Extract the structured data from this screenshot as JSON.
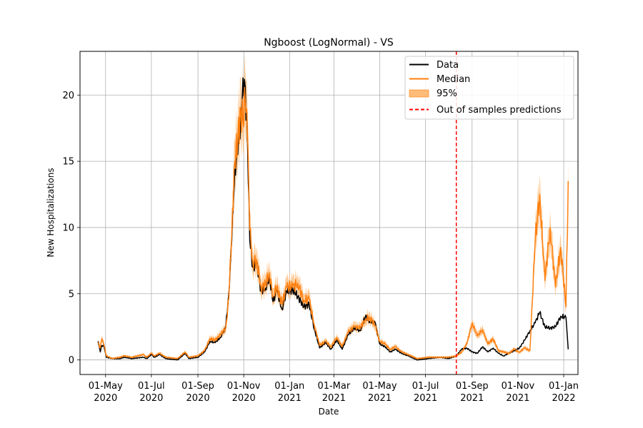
{
  "chart_data": {
    "type": "line",
    "title": "Ngboost (LogNormal) - VS",
    "xlabel": "Date",
    "ylabel": "New Hospitalizations",
    "x_range": [
      "2020-03-28",
      "2022-01-20"
    ],
    "ylim": [
      -1.1,
      23.3
    ],
    "grid": true,
    "legend_position": "upper right",
    "x_ticks": [
      {
        "date": "2020-05-01",
        "line1": "01-May",
        "line2": "2020"
      },
      {
        "date": "2020-07-01",
        "line1": "01-Jul",
        "line2": "2020"
      },
      {
        "date": "2020-09-01",
        "line1": "01-Sep",
        "line2": "2020"
      },
      {
        "date": "2020-11-01",
        "line1": "01-Nov",
        "line2": "2020"
      },
      {
        "date": "2021-01-01",
        "line1": "01-Jan",
        "line2": "2021"
      },
      {
        "date": "2021-03-01",
        "line1": "01-Mar",
        "line2": "2021"
      },
      {
        "date": "2021-05-01",
        "line1": "01-May",
        "line2": "2021"
      },
      {
        "date": "2021-07-01",
        "line1": "01-Jul",
        "line2": "2021"
      },
      {
        "date": "2021-09-01",
        "line1": "01-Sep",
        "line2": "2021"
      },
      {
        "date": "2021-11-01",
        "line1": "01-Nov",
        "line2": "2021"
      },
      {
        "date": "2022-01-01",
        "line1": "01-Jan",
        "line2": "2022"
      }
    ],
    "y_ticks": [
      0,
      5,
      10,
      15,
      20
    ],
    "legend": {
      "data": "Data",
      "median": "Median",
      "band": "95%",
      "split": "Out of samples predictions"
    },
    "colors": {
      "data": "#000000",
      "median": "#ff7f0e",
      "band": "#ffbb78",
      "split": "#ff0000",
      "grid": "#b0b0b0"
    },
    "split_date": "2021-08-11",
    "series": [
      {
        "name": "Data",
        "points": [
          [
            "2020-04-21",
            1.4
          ],
          [
            "2020-04-24",
            0.6
          ],
          [
            "2020-04-26",
            1.1
          ],
          [
            "2020-04-29",
            1.0
          ],
          [
            "2020-05-02",
            0.2
          ],
          [
            "2020-05-10",
            0.1
          ],
          [
            "2020-05-20",
            0.1
          ],
          [
            "2020-05-26",
            0.2
          ],
          [
            "2020-06-05",
            0.1
          ],
          [
            "2020-06-20",
            0.2
          ],
          [
            "2020-06-25",
            0.1
          ],
          [
            "2020-07-01",
            0.4
          ],
          [
            "2020-07-05",
            0.2
          ],
          [
            "2020-07-12",
            0.4
          ],
          [
            "2020-07-20",
            0.1
          ],
          [
            "2020-08-05",
            0.0
          ],
          [
            "2020-08-15",
            0.5
          ],
          [
            "2020-08-20",
            0.1
          ],
          [
            "2020-09-01",
            0.2
          ],
          [
            "2020-09-10",
            0.6
          ],
          [
            "2020-09-17",
            1.4
          ],
          [
            "2020-09-24",
            1.3
          ],
          [
            "2020-10-01",
            1.7
          ],
          [
            "2020-10-08",
            2.5
          ],
          [
            "2020-10-12",
            5.0
          ],
          [
            "2020-10-16",
            9.0
          ],
          [
            "2020-10-20",
            14.4
          ],
          [
            "2020-10-24",
            15.5
          ],
          [
            "2020-10-28",
            18.2
          ],
          [
            "2020-10-31",
            21.3
          ],
          [
            "2020-11-03",
            20.6
          ],
          [
            "2020-11-06",
            16.5
          ],
          [
            "2020-11-09",
            9.0
          ],
          [
            "2020-11-13",
            7.0
          ],
          [
            "2020-11-18",
            7.3
          ],
          [
            "2020-11-24",
            5.2
          ],
          [
            "2020-11-30",
            5.4
          ],
          [
            "2020-12-05",
            6.3
          ],
          [
            "2020-12-10",
            4.4
          ],
          [
            "2020-12-15",
            5.2
          ],
          [
            "2020-12-22",
            3.8
          ],
          [
            "2020-12-28",
            5.2
          ],
          [
            "2021-01-05",
            5.3
          ],
          [
            "2021-01-12",
            4.8
          ],
          [
            "2021-01-20",
            4.0
          ],
          [
            "2021-01-27",
            4.2
          ],
          [
            "2021-02-03",
            2.3
          ],
          [
            "2021-02-10",
            0.9
          ],
          [
            "2021-02-18",
            1.3
          ],
          [
            "2021-02-25",
            0.8
          ],
          [
            "2021-03-05",
            1.5
          ],
          [
            "2021-03-12",
            0.8
          ],
          [
            "2021-03-20",
            1.9
          ],
          [
            "2021-03-28",
            2.4
          ],
          [
            "2021-04-05",
            2.2
          ],
          [
            "2021-04-12",
            3.3
          ],
          [
            "2021-04-18",
            2.9
          ],
          [
            "2021-04-25",
            2.8
          ],
          [
            "2021-05-01",
            1.2
          ],
          [
            "2021-05-08",
            1.0
          ],
          [
            "2021-05-15",
            0.6
          ],
          [
            "2021-05-22",
            0.8
          ],
          [
            "2021-05-30",
            0.5
          ],
          [
            "2021-06-08",
            0.3
          ],
          [
            "2021-06-20",
            0.0
          ],
          [
            "2021-07-05",
            0.1
          ],
          [
            "2021-07-20",
            0.2
          ],
          [
            "2021-08-01",
            0.1
          ],
          [
            "2021-08-11",
            0.3
          ],
          [
            "2021-08-18",
            0.8
          ],
          [
            "2021-08-25",
            0.9
          ],
          [
            "2021-09-01",
            0.6
          ],
          [
            "2021-09-08",
            0.5
          ],
          [
            "2021-09-15",
            1.0
          ],
          [
            "2021-09-22",
            0.6
          ],
          [
            "2021-09-29",
            0.9
          ],
          [
            "2021-10-06",
            0.5
          ],
          [
            "2021-10-13",
            0.3
          ],
          [
            "2021-10-20",
            0.5
          ],
          [
            "2021-10-27",
            0.7
          ],
          [
            "2021-11-03",
            0.9
          ],
          [
            "2021-11-10",
            1.5
          ],
          [
            "2021-11-17",
            2.2
          ],
          [
            "2021-11-24",
            2.8
          ],
          [
            "2021-11-30",
            3.6
          ],
          [
            "2021-12-07",
            2.5
          ],
          [
            "2021-12-14",
            2.4
          ],
          [
            "2021-12-21",
            2.5
          ],
          [
            "2021-12-28",
            3.3
          ],
          [
            "2022-01-04",
            3.2
          ],
          [
            "2022-01-07",
            0.8
          ]
        ]
      },
      {
        "name": "Median",
        "points": [
          [
            "2020-04-21",
            1.3
          ],
          [
            "2020-04-24",
            0.9
          ],
          [
            "2020-04-26",
            1.6
          ],
          [
            "2020-04-29",
            1.1
          ],
          [
            "2020-05-02",
            0.3
          ],
          [
            "2020-05-10",
            0.1
          ],
          [
            "2020-05-20",
            0.2
          ],
          [
            "2020-05-26",
            0.3
          ],
          [
            "2020-06-05",
            0.2
          ],
          [
            "2020-06-20",
            0.4
          ],
          [
            "2020-06-25",
            0.2
          ],
          [
            "2020-07-01",
            0.5
          ],
          [
            "2020-07-05",
            0.3
          ],
          [
            "2020-07-12",
            0.5
          ],
          [
            "2020-07-20",
            0.2
          ],
          [
            "2020-08-05",
            0.1
          ],
          [
            "2020-08-15",
            0.6
          ],
          [
            "2020-08-20",
            0.2
          ],
          [
            "2020-09-01",
            0.3
          ],
          [
            "2020-09-10",
            0.7
          ],
          [
            "2020-09-17",
            1.6
          ],
          [
            "2020-09-24",
            1.5
          ],
          [
            "2020-10-01",
            1.9
          ],
          [
            "2020-10-08",
            2.4
          ],
          [
            "2020-10-12",
            4.6
          ],
          [
            "2020-10-16",
            9.6
          ],
          [
            "2020-10-20",
            15.0
          ],
          [
            "2020-10-24",
            16.5
          ],
          [
            "2020-10-28",
            19.0
          ],
          [
            "2020-10-31",
            18.0
          ],
          [
            "2020-11-03",
            19.5
          ],
          [
            "2020-11-06",
            17.0
          ],
          [
            "2020-11-09",
            9.8
          ],
          [
            "2020-11-13",
            7.4
          ],
          [
            "2020-11-18",
            7.6
          ],
          [
            "2020-11-24",
            5.5
          ],
          [
            "2020-11-30",
            5.7
          ],
          [
            "2020-12-05",
            6.6
          ],
          [
            "2020-12-10",
            4.8
          ],
          [
            "2020-12-15",
            5.5
          ],
          [
            "2020-12-22",
            4.2
          ],
          [
            "2020-12-28",
            5.5
          ],
          [
            "2021-01-05",
            5.5
          ],
          [
            "2021-01-12",
            5.8
          ],
          [
            "2021-01-20",
            4.5
          ],
          [
            "2021-01-27",
            4.6
          ],
          [
            "2021-02-03",
            2.6
          ],
          [
            "2021-02-10",
            1.1
          ],
          [
            "2021-02-18",
            1.4
          ],
          [
            "2021-02-25",
            1.0
          ],
          [
            "2021-03-05",
            1.7
          ],
          [
            "2021-03-12",
            1.0
          ],
          [
            "2021-03-20",
            2.1
          ],
          [
            "2021-03-28",
            2.5
          ],
          [
            "2021-04-05",
            2.4
          ],
          [
            "2021-04-12",
            3.1
          ],
          [
            "2021-04-18",
            3.2
          ],
          [
            "2021-04-25",
            2.6
          ],
          [
            "2021-05-01",
            1.4
          ],
          [
            "2021-05-08",
            1.2
          ],
          [
            "2021-05-15",
            0.8
          ],
          [
            "2021-05-22",
            1.0
          ],
          [
            "2021-05-30",
            0.6
          ],
          [
            "2021-06-08",
            0.4
          ],
          [
            "2021-06-20",
            0.1
          ],
          [
            "2021-07-05",
            0.2
          ],
          [
            "2021-07-20",
            0.2
          ],
          [
            "2021-08-01",
            0.2
          ],
          [
            "2021-08-11",
            0.3
          ],
          [
            "2021-08-18",
            0.6
          ],
          [
            "2021-08-25",
            1.2
          ],
          [
            "2021-09-01",
            2.8
          ],
          [
            "2021-09-08",
            1.8
          ],
          [
            "2021-09-15",
            2.3
          ],
          [
            "2021-09-22",
            1.2
          ],
          [
            "2021-09-29",
            1.6
          ],
          [
            "2021-10-06",
            0.7
          ],
          [
            "2021-10-13",
            0.6
          ],
          [
            "2021-10-20",
            0.5
          ],
          [
            "2021-10-27",
            0.8
          ],
          [
            "2021-11-03",
            0.6
          ],
          [
            "2021-11-10",
            0.9
          ],
          [
            "2021-11-17",
            0.7
          ],
          [
            "2021-11-24",
            9.0
          ],
          [
            "2021-11-30",
            12.5
          ],
          [
            "2021-12-07",
            6.0
          ],
          [
            "2021-12-14",
            10.0
          ],
          [
            "2021-12-21",
            5.5
          ],
          [
            "2021-12-28",
            8.5
          ],
          [
            "2022-01-04",
            4.0
          ],
          [
            "2022-01-07",
            13.5
          ]
        ]
      }
    ]
  }
}
